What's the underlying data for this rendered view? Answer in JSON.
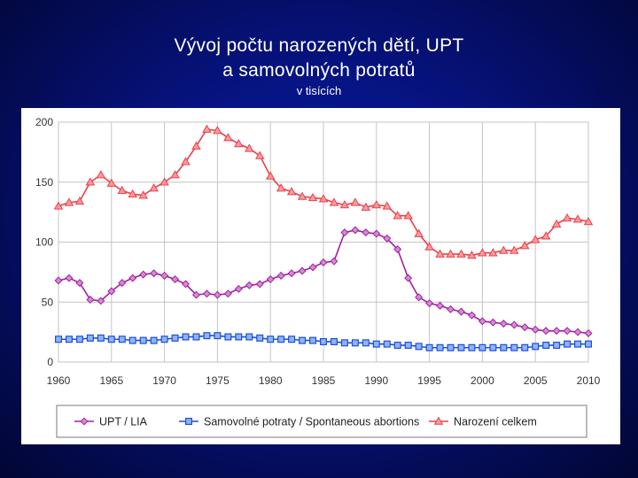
{
  "slide": {
    "title_line1": "Vývoj počtu narozených dětí, UPT",
    "title_line2": "a samovolných potratů",
    "subtitle": "v tisících"
  },
  "chart_data": {
    "type": "line",
    "x": [
      1960,
      1961,
      1962,
      1963,
      1964,
      1965,
      1966,
      1967,
      1968,
      1969,
      1970,
      1971,
      1972,
      1973,
      1974,
      1975,
      1976,
      1977,
      1978,
      1979,
      1980,
      1981,
      1982,
      1983,
      1984,
      1985,
      1986,
      1987,
      1988,
      1989,
      1990,
      1991,
      1992,
      1993,
      1994,
      1995,
      1996,
      1997,
      1998,
      1999,
      2000,
      2001,
      2002,
      2003,
      2004,
      2005,
      2006,
      2007,
      2008,
      2009,
      2010
    ],
    "xlim": [
      1960,
      2010
    ],
    "ylim": [
      0,
      200
    ],
    "x_ticks": [
      "1960",
      "1965",
      "1970",
      "1975",
      "1980",
      "1985",
      "1990",
      "1995",
      "2000",
      "2005",
      "2010"
    ],
    "y_ticks": [
      "0",
      "50",
      "100",
      "150",
      "200"
    ],
    "grid": "vertical and horizontal",
    "legend_position": "bottom",
    "series": [
      {
        "name": "UPT / LIA",
        "color": "#a020a0",
        "marker": "diamond",
        "values": [
          68,
          70,
          66,
          52,
          51,
          59,
          66,
          70,
          73,
          74,
          72,
          69,
          65,
          56,
          57,
          56,
          57,
          61,
          64,
          65,
          69,
          72,
          74,
          76,
          79,
          83,
          84,
          108,
          110,
          108,
          107,
          103,
          94,
          70,
          54,
          49,
          47,
          44,
          42,
          39,
          34,
          33,
          32,
          31,
          29,
          27,
          26,
          26,
          26,
          25,
          24
        ]
      },
      {
        "name": "Samovolné potraty / Spontaneous abortions",
        "color": "#1c4fd6",
        "marker": "square",
        "values": [
          19,
          19,
          19,
          20,
          20,
          19,
          19,
          18,
          18,
          18,
          19,
          20,
          21,
          21,
          22,
          22,
          21,
          21,
          21,
          20,
          19,
          19,
          19,
          18,
          18,
          17,
          17,
          16,
          16,
          16,
          15,
          15,
          14,
          14,
          13,
          12,
          12,
          12,
          12,
          12,
          12,
          12,
          12,
          12,
          12,
          13,
          14,
          14,
          15,
          15,
          15
        ]
      },
      {
        "name": "Narození celkem",
        "color": "#e8404a",
        "marker": "triangle",
        "values": [
          130,
          133,
          134,
          150,
          156,
          149,
          143,
          140,
          139,
          145,
          150,
          156,
          167,
          180,
          194,
          193,
          187,
          182,
          178,
          172,
          155,
          145,
          142,
          138,
          137,
          136,
          133,
          131,
          133,
          129,
          131,
          130,
          122,
          122,
          107,
          96,
          90,
          90,
          90,
          89,
          91,
          91,
          93,
          93,
          97,
          102,
          105,
          115,
          120,
          119,
          117
        ]
      }
    ]
  }
}
